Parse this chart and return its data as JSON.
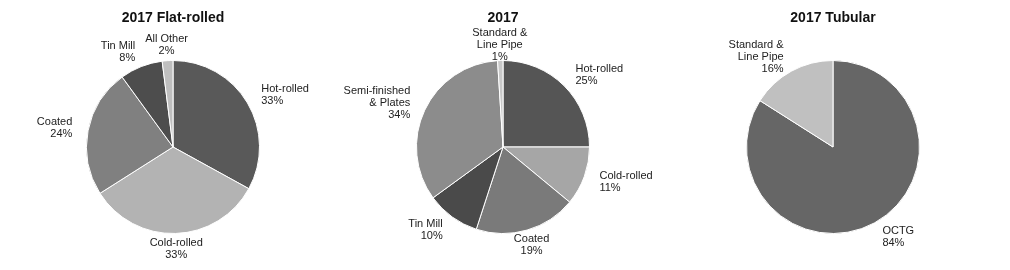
{
  "chart_data": [
    {
      "type": "pie",
      "title": "2017 Flat-rolled",
      "categories": [
        "Hot-rolled",
        "Cold-rolled",
        "Coated",
        "Tin Mill",
        "All Other"
      ],
      "values": [
        33,
        33,
        24,
        8,
        2
      ],
      "value_labels": [
        "33%",
        "33%",
        "24%",
        "8%",
        "2%"
      ],
      "colors": [
        "#595959",
        "#b3b3b3",
        "#808080",
        "#4d4d4d",
        "#bfbfbf"
      ],
      "legend": false
    },
    {
      "type": "pie",
      "title": "2017",
      "categories": [
        "Hot-rolled",
        "Cold-rolled",
        "Coated",
        "Tin Mill",
        "Semi-finished & Plates",
        "Standard & Line Pipe"
      ],
      "values": [
        25,
        11,
        19,
        10,
        34,
        1
      ],
      "value_labels": [
        "25%",
        "11%",
        "19%",
        "10%",
        "34%",
        "1%"
      ],
      "colors": [
        "#555555",
        "#a6a6a6",
        "#7a7a7a",
        "#4a4a4a",
        "#8c8c8c",
        "#c8c8c8"
      ],
      "legend": false
    },
    {
      "type": "pie",
      "title": "2017 Tubular",
      "categories": [
        "OCTG",
        "Standard & Line Pipe"
      ],
      "values": [
        84,
        16
      ],
      "value_labels": [
        "84%",
        "16%"
      ],
      "colors": [
        "#666666",
        "#c0c0c0"
      ],
      "legend": false
    }
  ]
}
